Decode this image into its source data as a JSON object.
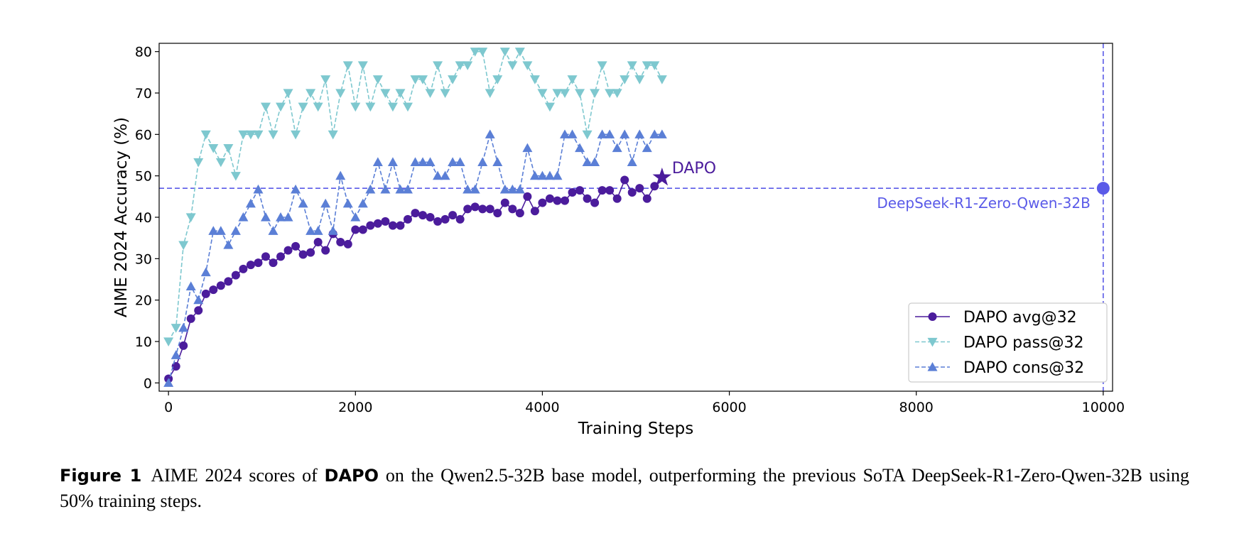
{
  "chart_data": {
    "type": "line",
    "xlabel": "Training Steps",
    "ylabel": "AIME 2024 Accuracy (%)",
    "xlim": [
      -100,
      10100
    ],
    "ylim": [
      -2,
      82
    ],
    "xticks": [
      0,
      2000,
      4000,
      6000,
      8000,
      10000
    ],
    "yticks": [
      0,
      10,
      20,
      30,
      40,
      50,
      60,
      70,
      80
    ],
    "legend": "lower right",
    "x": [
      0,
      80,
      160,
      240,
      320,
      400,
      480,
      560,
      640,
      720,
      800,
      880,
      960,
      1040,
      1120,
      1200,
      1280,
      1360,
      1440,
      1520,
      1600,
      1680,
      1760,
      1840,
      1920,
      2000,
      2080,
      2160,
      2240,
      2320,
      2400,
      2480,
      2560,
      2640,
      2720,
      2800,
      2880,
      2960,
      3040,
      3120,
      3200,
      3280,
      3360,
      3440,
      3520,
      3600,
      3680,
      3760,
      3840,
      3920,
      4000,
      4080,
      4160,
      4240,
      4320,
      4400,
      4480,
      4560,
      4640,
      4720,
      4800,
      4880,
      4960,
      5040,
      5120,
      5200,
      5280
    ],
    "series": [
      {
        "name": "DAPO avg@32",
        "color": "#4b1c9c",
        "linestyle": "solid",
        "marker": "circle",
        "last_marker": "star",
        "values": [
          1,
          4,
          9,
          15.5,
          17.5,
          21.5,
          22.5,
          23.5,
          24.5,
          26,
          27.5,
          28.5,
          29,
          30.5,
          29,
          30.5,
          32,
          33,
          31,
          31.5,
          34,
          32,
          36,
          34,
          33.5,
          37,
          37,
          38,
          38.5,
          39,
          38,
          38,
          39.5,
          41,
          40.5,
          40,
          39,
          39.5,
          40.5,
          39.5,
          42,
          42.5,
          42,
          42,
          41,
          43.5,
          42,
          41,
          45,
          41.5,
          43.5,
          44.5,
          44,
          44,
          46,
          46.5,
          44.5,
          43.5,
          46.5,
          46.5,
          44.5,
          49,
          46,
          47,
          44.5,
          47.5,
          49.6
        ]
      },
      {
        "name": "DAPO pass@32",
        "color": "#7ec8cf",
        "linestyle": "dashed",
        "marker": "triangle-down",
        "values": [
          10,
          13.3,
          33.3,
          40,
          53.3,
          60,
          56.7,
          53.3,
          56.7,
          50,
          60,
          60,
          60,
          66.7,
          60,
          66.7,
          70,
          60,
          66.7,
          70,
          66.7,
          73.3,
          60,
          70,
          76.7,
          66.7,
          76.7,
          66.7,
          73.3,
          70,
          66.7,
          70,
          66.7,
          73.3,
          73.3,
          70,
          76.7,
          70,
          73.3,
          76.7,
          76.7,
          80,
          80,
          70,
          73.3,
          80,
          76.7,
          80,
          76.7,
          73.3,
          70,
          66.7,
          70,
          70,
          73.3,
          70,
          60,
          70,
          76.7,
          70,
          70,
          73.3,
          76.7,
          73.3,
          76.7,
          76.7,
          73.3
        ]
      },
      {
        "name": "DAPO cons@32",
        "color": "#5b7fd6",
        "linestyle": "dashed",
        "marker": "triangle-up",
        "values": [
          0,
          6.7,
          13.3,
          23.3,
          20,
          26.7,
          36.7,
          36.7,
          33.3,
          36.7,
          40,
          43.3,
          46.7,
          40,
          36.7,
          40,
          40,
          46.7,
          43.3,
          36.7,
          36.7,
          43.3,
          36.7,
          50,
          43.3,
          40,
          43.3,
          46.7,
          53.3,
          46.7,
          53.3,
          46.7,
          46.7,
          53.3,
          53.3,
          53.3,
          50,
          50,
          53.3,
          53.3,
          46.7,
          46.7,
          53.3,
          60,
          53.3,
          46.7,
          46.7,
          46.7,
          56.7,
          50,
          50,
          50,
          50,
          60,
          60,
          56.7,
          53.3,
          53.3,
          60,
          60,
          56.7,
          60,
          53.3,
          60,
          56.7,
          60,
          60
        ]
      }
    ],
    "annotation": {
      "text": "DAPO",
      "color": "#4b1c9c"
    },
    "reference": {
      "label": "DeepSeek-R1-Zero-Qwen-32B",
      "x": 10000,
      "y": 47,
      "color": "#5a5ae8"
    }
  },
  "caption": [
    {
      "text": "Figure 1",
      "bold": true
    },
    {
      "text": "AIME 2024 scores of",
      "bold": false
    },
    {
      "text": "DAPO",
      "bold": true
    },
    {
      "text": "on the Qwen2.5-32B base model, outperforming the previous SoTA DeepSeek-R1-Zero-Qwen-32B using 50% training steps.",
      "bold": false
    }
  ]
}
